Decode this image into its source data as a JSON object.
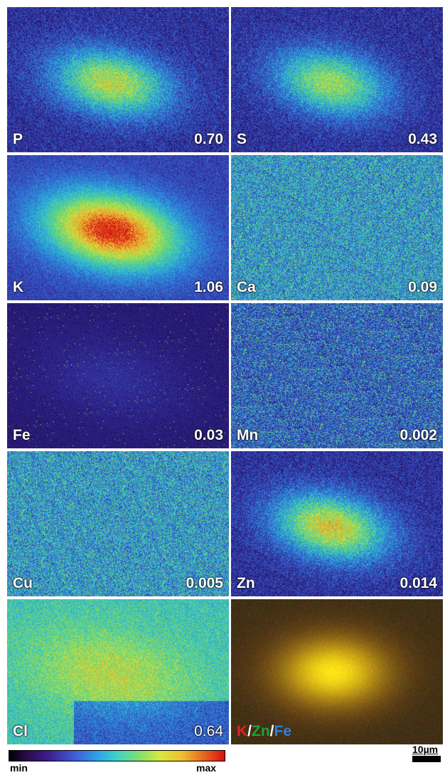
{
  "panels": [
    {
      "id": "p",
      "label": "P",
      "value": "0.70",
      "style": "blob",
      "intensity": 0.55
    },
    {
      "id": "s",
      "label": "S",
      "value": "0.43",
      "style": "blob",
      "intensity": 0.5
    },
    {
      "id": "k",
      "label": "K",
      "value": "1.06",
      "style": "blob-strong",
      "intensity": 0.9
    },
    {
      "id": "ca",
      "label": "Ca",
      "value": "0.09",
      "style": "uniform",
      "intensity": 0.45
    },
    {
      "id": "fe",
      "label": "Fe",
      "value": "0.03",
      "style": "dark-speckle",
      "intensity": 0.15
    },
    {
      "id": "mn",
      "label": "Mn",
      "value": "0.002",
      "style": "noisy-dark",
      "intensity": 0.3
    },
    {
      "id": "cu",
      "label": "Cu",
      "value": "0.005",
      "style": "uniform",
      "intensity": 0.45
    },
    {
      "id": "zn",
      "label": "Zn",
      "value": "0.014",
      "style": "blob",
      "intensity": 0.6
    },
    {
      "id": "cl",
      "label": "Cl",
      "value": "0.64",
      "style": "cl",
      "intensity": 0.6
    }
  ],
  "rgb_panel": {
    "k": "K",
    "zn": "Zn",
    "fe": "Fe",
    "sep": "/"
  },
  "colorbar": {
    "min_label": "min",
    "max_label": "max"
  },
  "scalebar": {
    "label": "10µm"
  }
}
